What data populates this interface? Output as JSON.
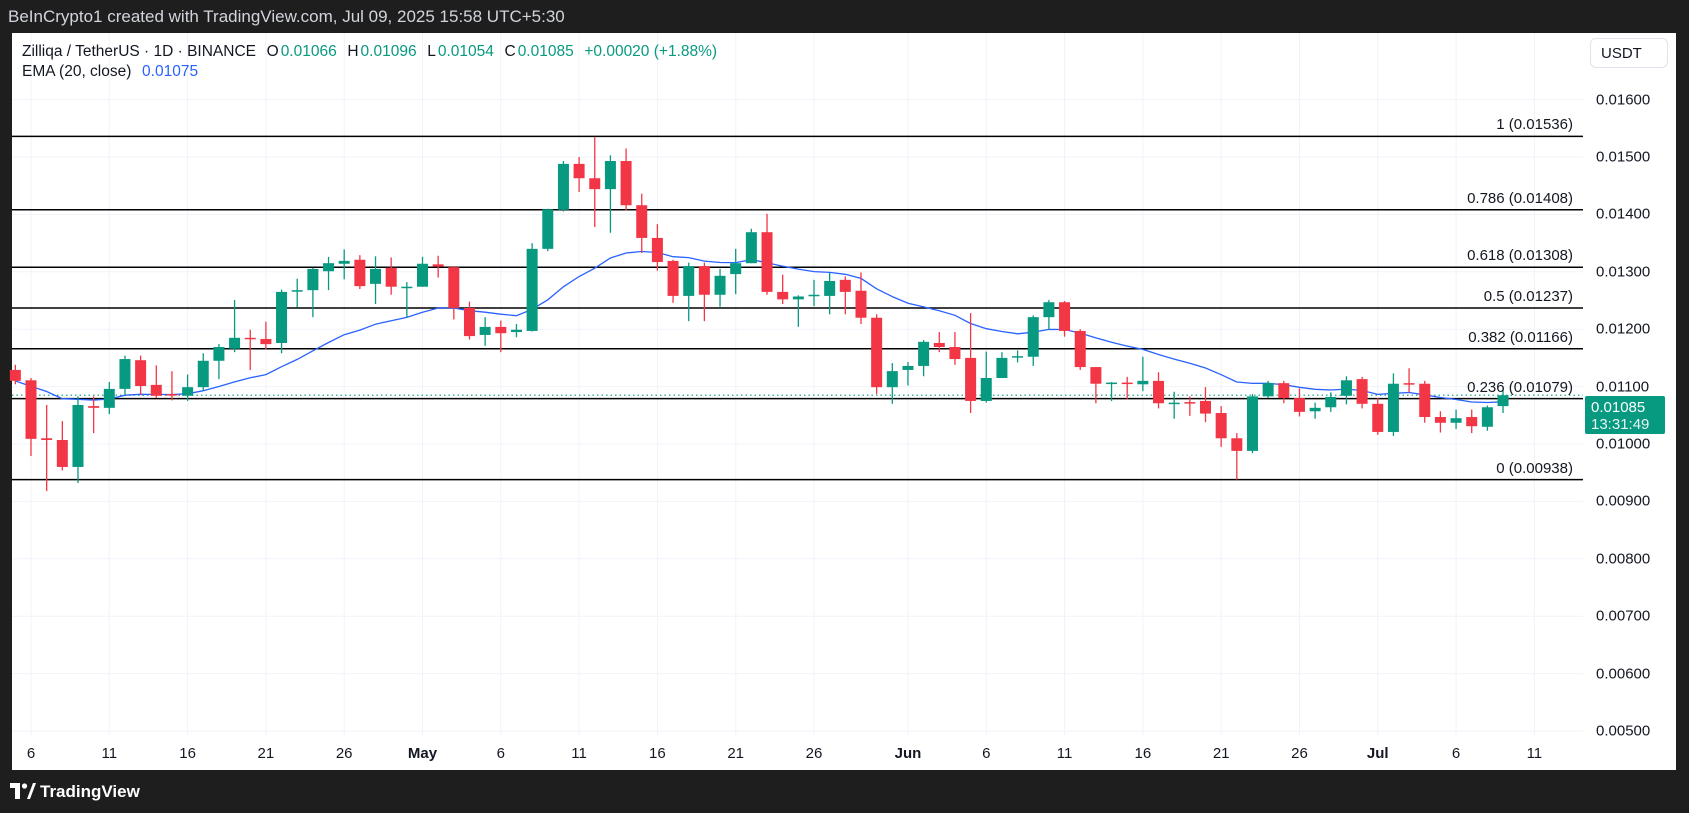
{
  "header": {
    "attribution": "BeInCrypto1 created with TradingView.com, Jul 09, 2025 15:58 UTC+5:30"
  },
  "legend": {
    "symbol": "Zilliqa / TetherUS · 1D · BINANCE",
    "o_label": "O",
    "o_value": "0.01066",
    "h_label": "H",
    "h_value": "0.01096",
    "l_label": "L",
    "l_value": "0.01054",
    "c_label": "C",
    "c_value": "0.01085",
    "change": "+0.00020 (+1.88%)",
    "ema_label": "EMA (20, close)",
    "ema_value": "0.01075"
  },
  "currency_button": "USDT",
  "price_tag": {
    "price": "0.01085",
    "countdown": "13:31:49"
  },
  "footer": {
    "brand": "TradingView"
  },
  "colors": {
    "up": "#089981",
    "down": "#f23645",
    "ema": "#2962ff",
    "fib_line": "#000000",
    "grid": "#f0f3fa"
  },
  "chart_data": {
    "type": "candlestick",
    "title": "Zilliqa / TetherUS · 1D · BINANCE",
    "ylim": [
      0.0045,
      0.0168
    ],
    "grid": true,
    "y_ticks": [
      "0.01600",
      "0.01500",
      "0.01400",
      "0.01300",
      "0.01200",
      "0.01100",
      "0.01000",
      "0.00900",
      "0.00800",
      "0.00700",
      "0.00600",
      "0.00500"
    ],
    "x_ticks": [
      {
        "label": "6",
        "date": "2025-04-06"
      },
      {
        "label": "11",
        "date": "2025-04-11"
      },
      {
        "label": "16",
        "date": "2025-04-16"
      },
      {
        "label": "21",
        "date": "2025-04-21"
      },
      {
        "label": "26",
        "date": "2025-04-26"
      },
      {
        "label": "May",
        "date": "2025-05-01",
        "month": true
      },
      {
        "label": "6",
        "date": "2025-05-06"
      },
      {
        "label": "11",
        "date": "2025-05-11"
      },
      {
        "label": "16",
        "date": "2025-05-16"
      },
      {
        "label": "21",
        "date": "2025-05-21"
      },
      {
        "label": "26",
        "date": "2025-05-26"
      },
      {
        "label": "Jun",
        "date": "2025-06-01",
        "month": true
      },
      {
        "label": "6",
        "date": "2025-06-06"
      },
      {
        "label": "11",
        "date": "2025-06-11"
      },
      {
        "label": "16",
        "date": "2025-06-16"
      },
      {
        "label": "21",
        "date": "2025-06-21"
      },
      {
        "label": "26",
        "date": "2025-06-26"
      },
      {
        "label": "Jul",
        "date": "2025-07-01",
        "month": true
      },
      {
        "label": "6",
        "date": "2025-07-06"
      },
      {
        "label": "11",
        "date": "2025-07-11"
      }
    ],
    "current_price": 0.01085,
    "fib_levels": [
      {
        "label": "1 (0.01536)",
        "price": 0.01536
      },
      {
        "label": "0.786 (0.01408)",
        "price": 0.01408
      },
      {
        "label": "0.618 (0.01308)",
        "price": 0.01308
      },
      {
        "label": "0.5 (0.01237)",
        "price": 0.01237
      },
      {
        "label": "0.382 (0.01166)",
        "price": 0.01166
      },
      {
        "label": "0.236 (0.01079)",
        "price": 0.01079
      },
      {
        "label": "0 (0.00938)",
        "price": 0.00938
      }
    ],
    "ema_period": 20,
    "candles_columns": [
      "date",
      "open",
      "high",
      "low",
      "close"
    ],
    "candles": [
      [
        "2025-04-05",
        0.01129,
        0.01138,
        0.01104,
        0.0111
      ],
      [
        "2025-04-06",
        0.01111,
        0.01115,
        0.00979,
        0.01009
      ],
      [
        "2025-04-07",
        0.0101,
        0.01068,
        0.00918,
        0.01007
      ],
      [
        "2025-04-08",
        0.01007,
        0.0104,
        0.00954,
        0.0096
      ],
      [
        "2025-04-09",
        0.0096,
        0.01083,
        0.00932,
        0.01068
      ],
      [
        "2025-04-10",
        0.01066,
        0.01083,
        0.01019,
        0.01063
      ],
      [
        "2025-04-11",
        0.01063,
        0.01108,
        0.01052,
        0.01096
      ],
      [
        "2025-04-12",
        0.01096,
        0.01154,
        0.01085,
        0.01148
      ],
      [
        "2025-04-13",
        0.01146,
        0.01154,
        0.01085,
        0.01101
      ],
      [
        "2025-04-14",
        0.01103,
        0.01137,
        0.0108,
        0.01084
      ],
      [
        "2025-04-15",
        0.01087,
        0.01127,
        0.01076,
        0.01085
      ],
      [
        "2025-04-16",
        0.01084,
        0.01121,
        0.01075,
        0.01099
      ],
      [
        "2025-04-17",
        0.01099,
        0.01158,
        0.01093,
        0.01145
      ],
      [
        "2025-04-18",
        0.01145,
        0.01174,
        0.01113,
        0.01169
      ],
      [
        "2025-04-19",
        0.01166,
        0.01251,
        0.0116,
        0.01185
      ],
      [
        "2025-04-20",
        0.01185,
        0.01199,
        0.01129,
        0.01183
      ],
      [
        "2025-04-21",
        0.01183,
        0.01213,
        0.01165,
        0.01174
      ],
      [
        "2025-04-22",
        0.01176,
        0.01269,
        0.01158,
        0.01265
      ],
      [
        "2025-04-23",
        0.01267,
        0.01288,
        0.01238,
        0.01268
      ],
      [
        "2025-04-24",
        0.01268,
        0.01307,
        0.01221,
        0.01305
      ],
      [
        "2025-04-25",
        0.01301,
        0.01326,
        0.01268,
        0.01315
      ],
      [
        "2025-04-26",
        0.01314,
        0.01339,
        0.01287,
        0.01319
      ],
      [
        "2025-04-27",
        0.01321,
        0.01329,
        0.0127,
        0.01275
      ],
      [
        "2025-04-28",
        0.01279,
        0.01327,
        0.01244,
        0.01305
      ],
      [
        "2025-04-29",
        0.01307,
        0.01325,
        0.0126,
        0.01274
      ],
      [
        "2025-04-30",
        0.01272,
        0.01282,
        0.0122,
        0.01274
      ],
      [
        "2025-05-01",
        0.01274,
        0.01326,
        0.01274,
        0.01314
      ],
      [
        "2025-05-02",
        0.01313,
        0.01328,
        0.0129,
        0.01309
      ],
      [
        "2025-05-03",
        0.01308,
        0.0131,
        0.01217,
        0.01237
      ],
      [
        "2025-05-04",
        0.01237,
        0.01248,
        0.01182,
        0.01188
      ],
      [
        "2025-05-05",
        0.0119,
        0.01221,
        0.01171,
        0.01204
      ],
      [
        "2025-05-06",
        0.01204,
        0.01215,
        0.0116,
        0.01193
      ],
      [
        "2025-05-07",
        0.01195,
        0.01209,
        0.01186,
        0.01199
      ],
      [
        "2025-05-08",
        0.01197,
        0.0135,
        0.01196,
        0.0134
      ],
      [
        "2025-05-09",
        0.0134,
        0.0141,
        0.01336,
        0.01409
      ],
      [
        "2025-05-10",
        0.01408,
        0.01493,
        0.01405,
        0.01488
      ],
      [
        "2025-05-11",
        0.01488,
        0.015,
        0.01439,
        0.01463
      ],
      [
        "2025-05-12",
        0.01463,
        0.01535,
        0.01378,
        0.01444
      ],
      [
        "2025-05-13",
        0.01444,
        0.01503,
        0.01368,
        0.01493
      ],
      [
        "2025-05-14",
        0.01493,
        0.01515,
        0.01407,
        0.01416
      ],
      [
        "2025-05-15",
        0.01416,
        0.01436,
        0.01333,
        0.01359
      ],
      [
        "2025-05-16",
        0.01359,
        0.01383,
        0.01302,
        0.01317
      ],
      [
        "2025-05-17",
        0.01319,
        0.01321,
        0.01246,
        0.01258
      ],
      [
        "2025-05-18",
        0.01258,
        0.01316,
        0.01214,
        0.0131
      ],
      [
        "2025-05-19",
        0.0131,
        0.01316,
        0.01214,
        0.0126
      ],
      [
        "2025-05-20",
        0.0126,
        0.01305,
        0.01239,
        0.01293
      ],
      [
        "2025-05-21",
        0.01296,
        0.0134,
        0.01261,
        0.01315
      ],
      [
        "2025-05-22",
        0.01315,
        0.01375,
        0.01315,
        0.01369
      ],
      [
        "2025-05-23",
        0.01369,
        0.01401,
        0.0126,
        0.01265
      ],
      [
        "2025-05-24",
        0.01265,
        0.01295,
        0.01244,
        0.01252
      ],
      [
        "2025-05-25",
        0.01252,
        0.01259,
        0.01204,
        0.01257
      ],
      [
        "2025-05-26",
        0.01258,
        0.01286,
        0.0124,
        0.0126
      ],
      [
        "2025-05-27",
        0.01258,
        0.01298,
        0.01226,
        0.01284
      ],
      [
        "2025-05-28",
        0.01286,
        0.01292,
        0.01226,
        0.01265
      ],
      [
        "2025-05-29",
        0.01267,
        0.01299,
        0.01209,
        0.0122
      ],
      [
        "2025-05-30",
        0.0122,
        0.01226,
        0.01087,
        0.01099
      ],
      [
        "2025-05-31",
        0.01099,
        0.01141,
        0.0107,
        0.01127
      ],
      [
        "2025-06-01",
        0.01129,
        0.01143,
        0.01102,
        0.01136
      ],
      [
        "2025-06-02",
        0.01136,
        0.01181,
        0.01118,
        0.01178
      ],
      [
        "2025-06-03",
        0.01176,
        0.01195,
        0.0116,
        0.01169
      ],
      [
        "2025-06-04",
        0.01169,
        0.01195,
        0.01138,
        0.01148
      ],
      [
        "2025-06-05",
        0.0115,
        0.01228,
        0.01054,
        0.01075
      ],
      [
        "2025-06-06",
        0.01075,
        0.01161,
        0.01072,
        0.01115
      ],
      [
        "2025-06-07",
        0.01115,
        0.0116,
        0.01115,
        0.0115
      ],
      [
        "2025-06-08",
        0.01152,
        0.01163,
        0.01142,
        0.01153
      ],
      [
        "2025-06-09",
        0.01152,
        0.01224,
        0.01136,
        0.01221
      ],
      [
        "2025-06-10",
        0.01221,
        0.01251,
        0.01199,
        0.01247
      ],
      [
        "2025-06-11",
        0.01247,
        0.01249,
        0.01187,
        0.01197
      ],
      [
        "2025-06-12",
        0.01197,
        0.012,
        0.01129,
        0.01134
      ],
      [
        "2025-06-13",
        0.01134,
        0.01134,
        0.01071,
        0.01105
      ],
      [
        "2025-06-14",
        0.01106,
        0.01108,
        0.01075,
        0.01107
      ],
      [
        "2025-06-15",
        0.01107,
        0.01117,
        0.01078,
        0.01106
      ],
      [
        "2025-06-16",
        0.01104,
        0.01152,
        0.01092,
        0.0111
      ],
      [
        "2025-06-17",
        0.0111,
        0.01125,
        0.01062,
        0.01071
      ],
      [
        "2025-06-18",
        0.0107,
        0.01091,
        0.01044,
        0.01072
      ],
      [
        "2025-06-19",
        0.01073,
        0.01083,
        0.01049,
        0.01072
      ],
      [
        "2025-06-20",
        0.01075,
        0.01099,
        0.01038,
        0.01053
      ],
      [
        "2025-06-21",
        0.01054,
        0.01066,
        0.00995,
        0.0101
      ],
      [
        "2025-06-22",
        0.0101,
        0.01019,
        0.00938,
        0.00988
      ],
      [
        "2025-06-23",
        0.00988,
        0.01087,
        0.00984,
        0.01083
      ],
      [
        "2025-06-24",
        0.01083,
        0.0111,
        0.0108,
        0.01106
      ],
      [
        "2025-06-25",
        0.01106,
        0.0111,
        0.01071,
        0.0108
      ],
      [
        "2025-06-26",
        0.0108,
        0.01097,
        0.01048,
        0.01056
      ],
      [
        "2025-06-27",
        0.01057,
        0.01072,
        0.01044,
        0.01063
      ],
      [
        "2025-06-28",
        0.01064,
        0.0109,
        0.01056,
        0.01082
      ],
      [
        "2025-06-29",
        0.01084,
        0.01118,
        0.01069,
        0.01111
      ],
      [
        "2025-06-30",
        0.01113,
        0.01117,
        0.01062,
        0.0107
      ],
      [
        "2025-07-01",
        0.0107,
        0.0108,
        0.01016,
        0.01021
      ],
      [
        "2025-07-02",
        0.01021,
        0.01123,
        0.01014,
        0.01105
      ],
      [
        "2025-07-03",
        0.01106,
        0.01132,
        0.0109,
        0.01105
      ],
      [
        "2025-07-04",
        0.01105,
        0.0111,
        0.01037,
        0.01047
      ],
      [
        "2025-07-05",
        0.01047,
        0.01057,
        0.0102,
        0.01037
      ],
      [
        "2025-07-06",
        0.01037,
        0.0106,
        0.01026,
        0.01045
      ],
      [
        "2025-07-07",
        0.01047,
        0.0106,
        0.01019,
        0.01031
      ],
      [
        "2025-07-08",
        0.0103,
        0.01067,
        0.01023,
        0.01064
      ],
      [
        "2025-07-09",
        0.01066,
        0.01096,
        0.01054,
        0.01085
      ]
    ]
  }
}
